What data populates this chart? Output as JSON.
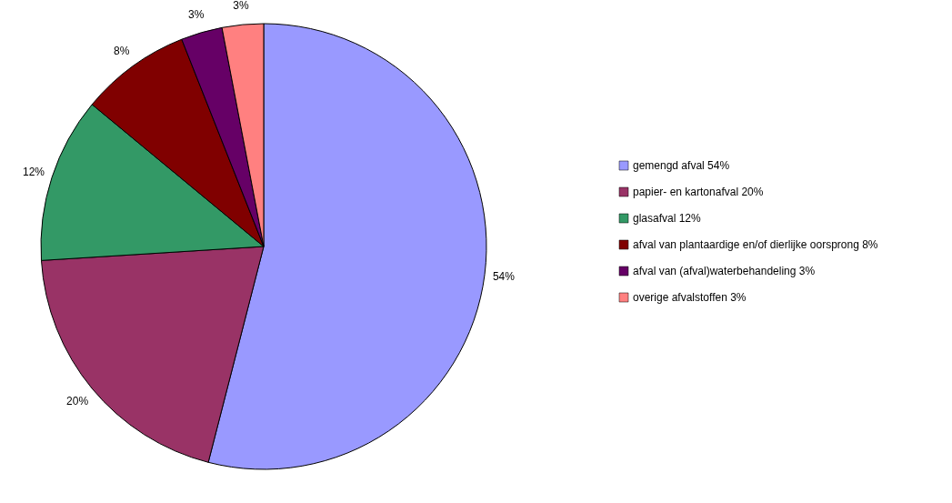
{
  "chart_data": {
    "type": "pie",
    "categories": [
      "gemengd afval 54%",
      "papier- en kartonafval 20%",
      "glasafval 12%",
      "afval van plantaardige en/of dierlijke oorsprong 8%",
      "afval van (afval)waterbehandeling 3%",
      "overige afvalstoffen 3%"
    ],
    "values": [
      54,
      20,
      12,
      8,
      3,
      3
    ],
    "colors": [
      "#9999ff",
      "#993366",
      "#339966",
      "#800000",
      "#660066",
      "#ff8080"
    ],
    "value_labels": [
      "54%",
      "20%",
      "12%",
      "8%",
      "3%",
      "3%"
    ],
    "legend": "right"
  }
}
